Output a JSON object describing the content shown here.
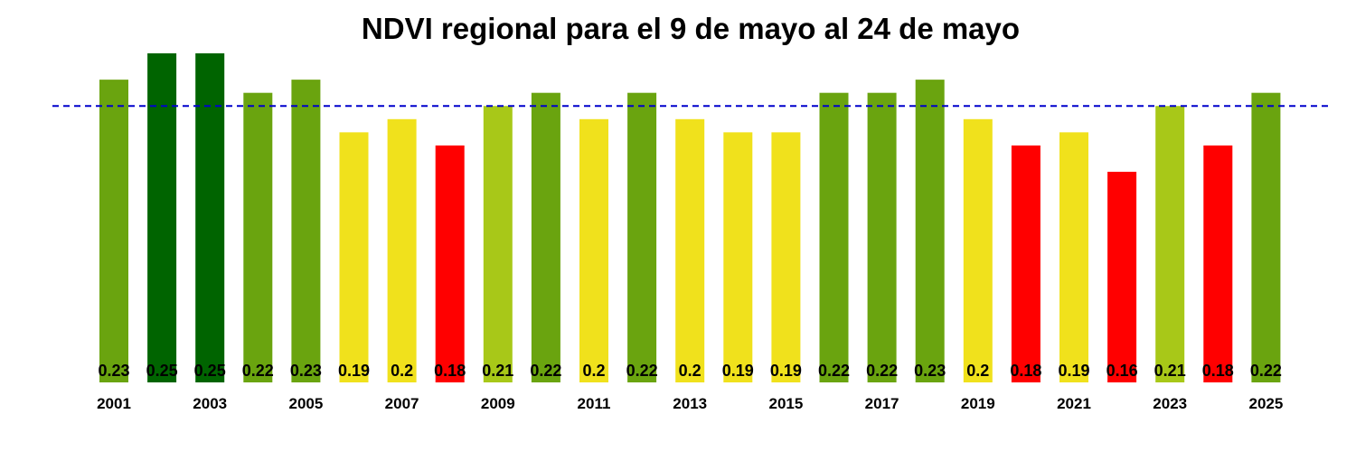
{
  "chart_data": {
    "type": "bar",
    "title": "NDVI regional para el 9 de mayo al 24 de mayo",
    "xlabel": "",
    "ylabel": "",
    "categories": [
      "2001",
      "2002",
      "2003",
      "2004",
      "2005",
      "2006",
      "2007",
      "2008",
      "2009",
      "2010",
      "2011",
      "2012",
      "2013",
      "2014",
      "2015",
      "2016",
      "2017",
      "2018",
      "2019",
      "2020",
      "2021",
      "2022",
      "2023",
      "2024",
      "2025"
    ],
    "tick_labels_shown": [
      "2001",
      "2003",
      "2005",
      "2007",
      "2009",
      "2011",
      "2013",
      "2015",
      "2017",
      "2019",
      "2021",
      "2023",
      "2025"
    ],
    "values": [
      0.23,
      0.25,
      0.25,
      0.22,
      0.23,
      0.19,
      0.2,
      0.18,
      0.21,
      0.22,
      0.2,
      0.22,
      0.2,
      0.19,
      0.19,
      0.22,
      0.22,
      0.23,
      0.2,
      0.18,
      0.19,
      0.16,
      0.21,
      0.18,
      0.22
    ],
    "value_labels": [
      "0.23",
      "0.25",
      "0.25",
      "0.22",
      "0.23",
      "0.19",
      "0.2",
      "0.18",
      "0.21",
      "0.22",
      "0.2",
      "0.22",
      "0.2",
      "0.19",
      "0.19",
      "0.22",
      "0.22",
      "0.23",
      "0.2",
      "0.18",
      "0.19",
      "0.16",
      "0.21",
      "0.18",
      "0.22"
    ],
    "bar_colors": [
      "#6aa40f",
      "#006400",
      "#006400",
      "#6aa40f",
      "#6aa40f",
      "#f0e11c",
      "#f0e11c",
      "#ff0000",
      "#a8c818",
      "#6aa40f",
      "#f0e11c",
      "#6aa40f",
      "#f0e11c",
      "#f0e11c",
      "#f0e11c",
      "#6aa40f",
      "#6aa40f",
      "#6aa40f",
      "#f0e11c",
      "#ff0000",
      "#f0e11c",
      "#ff0000",
      "#a8c818",
      "#ff0000",
      "#6aa40f"
    ],
    "reference_line": {
      "value": 0.21,
      "color": "#0000cc",
      "style": "dashed"
    },
    "ylim": [
      0,
      0.25
    ],
    "grid": false,
    "legend": "none"
  }
}
